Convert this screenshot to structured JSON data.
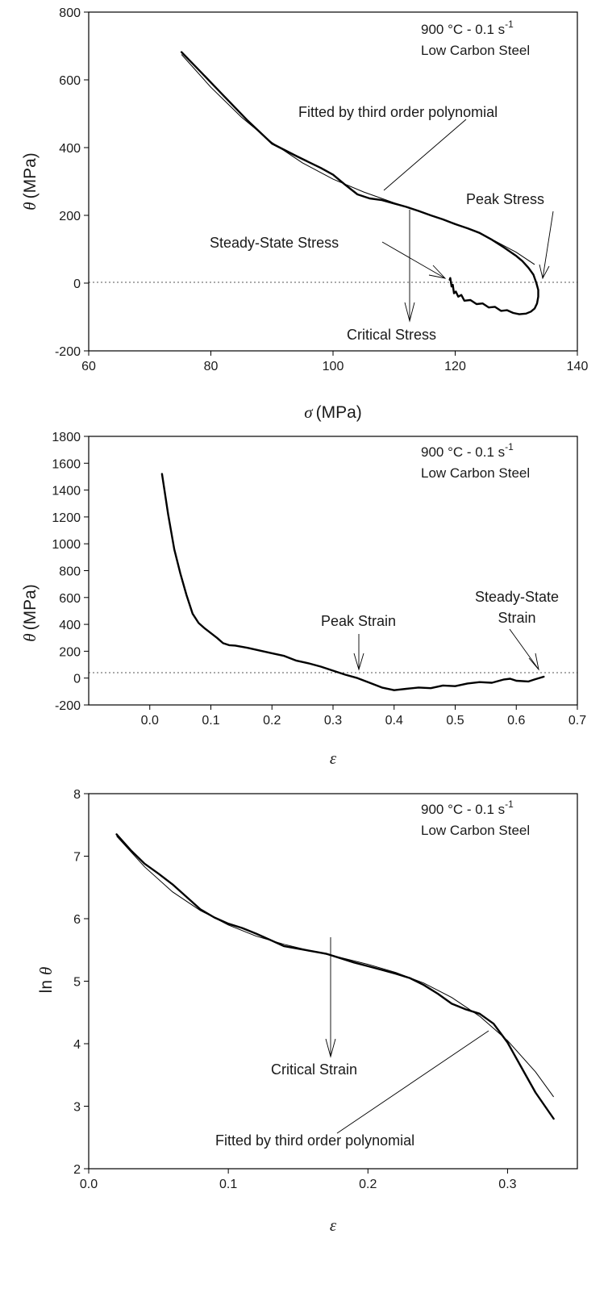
{
  "chart_data": [
    {
      "type": "line",
      "xlabel": "(MPa)",
      "xlabel_symbol": "σ",
      "ylabel": "(MPa)",
      "ylabel_symbol": "θ",
      "xlim": [
        60,
        140
      ],
      "ylim": [
        -200,
        800
      ],
      "xticks": [
        "60",
        "80",
        "100",
        "120",
        "140"
      ],
      "yticks": [
        "-200",
        "0",
        "200",
        "400",
        "600",
        "800"
      ],
      "note_line1": "900 °C - 0.1 s",
      "note_sup": "-1",
      "note_line2": "Low Carbon Steel",
      "zero_line": true,
      "series": [
        {
          "x": [
            75.2,
            78,
            82,
            86,
            90,
            94,
            98,
            100,
            102,
            104,
            106,
            108,
            110,
            112,
            114,
            116,
            118,
            120,
            122,
            124,
            126,
            128,
            130,
            131,
            132,
            132.8,
            133.3,
            133.6,
            133.6,
            133.4,
            133,
            132.4,
            131.6,
            130.5,
            129.5,
            128.5,
            127.5,
            126.5,
            125.5,
            124.5,
            123.5,
            122.5,
            121.5,
            121,
            120.5,
            120.1,
            119.8,
            119.6,
            119.4,
            119.2,
            119.1
          ],
          "y": [
            682,
            630,
            555,
            480,
            412,
            375,
            340,
            320,
            290,
            262,
            250,
            245,
            235,
            225,
            213,
            200,
            188,
            174,
            162,
            148,
            128,
            105,
            80,
            65,
            45,
            25,
            0,
            -20,
            -40,
            -60,
            -75,
            -84,
            -90,
            -92,
            -88,
            -80,
            -82,
            -70,
            -72,
            -60,
            -62,
            -50,
            -52,
            -35,
            -40,
            -25,
            -30,
            -5,
            -10,
            15,
            10
          ]
        }
      ],
      "fit": {
        "x": [
          75.2,
          80,
          85,
          90,
          95,
          100,
          105,
          110,
          115,
          120,
          125,
          130,
          133
        ],
        "y": [
          675,
          578,
          490,
          415,
          355,
          307,
          269,
          237,
          207,
          176,
          139,
          91,
          55
        ]
      },
      "annotations": {
        "fitted": "Fitted by third order polynomial",
        "peak": "Peak Stress",
        "steady": "Steady-State Stress",
        "critical": "Critical Stress"
      }
    },
    {
      "type": "line",
      "xlabel": "",
      "xlabel_symbol": "ε",
      "ylabel": "(MPa)",
      "ylabel_symbol": "θ",
      "xlim": [
        -0.1,
        0.7
      ],
      "ylim": [
        -200,
        1800
      ],
      "xticks": [
        "0.0",
        "0.1",
        "0.2",
        "0.3",
        "0.4",
        "0.5",
        "0.6",
        "0.7"
      ],
      "yticks": [
        "-200",
        "0",
        "200",
        "400",
        "600",
        "800",
        "1000",
        "1200",
        "1400",
        "1600",
        "1800"
      ],
      "note_line1": "900 °C - 0.1 s",
      "note_sup": "-1",
      "note_line2": "Low Carbon Steel",
      "zero_line": true,
      "series": [
        {
          "x": [
            0.02,
            0.03,
            0.04,
            0.05,
            0.06,
            0.07,
            0.08,
            0.09,
            0.1,
            0.11,
            0.12,
            0.13,
            0.14,
            0.16,
            0.18,
            0.2,
            0.22,
            0.24,
            0.26,
            0.28,
            0.3,
            0.32,
            0.34,
            0.36,
            0.38,
            0.4,
            0.42,
            0.44,
            0.46,
            0.48,
            0.5,
            0.52,
            0.54,
            0.56,
            0.58,
            0.59,
            0.6,
            0.62,
            0.63,
            0.645
          ],
          "y": [
            1520,
            1220,
            960,
            780,
            620,
            480,
            410,
            370,
            335,
            300,
            260,
            245,
            242,
            225,
            205,
            185,
            165,
            130,
            110,
            85,
            55,
            25,
            0,
            -35,
            -70,
            -90,
            -80,
            -70,
            -75,
            -55,
            -60,
            -40,
            -30,
            -35,
            -10,
            -5,
            -20,
            -25,
            -10,
            10
          ]
        }
      ],
      "annotations": {
        "peak": "Peak Strain",
        "steady_line1": "Steady-State",
        "steady_line2": "Strain"
      }
    },
    {
      "type": "line",
      "xlabel": "",
      "xlabel_symbol": "ε",
      "ylabel_prefix": "ln",
      "ylabel_symbol": "θ",
      "xlim": [
        0,
        0.35
      ],
      "ylim": [
        2,
        8
      ],
      "xticks": [
        "0.0",
        "0.1",
        "0.2",
        "0.3"
      ],
      "yticks": [
        "2",
        "3",
        "4",
        "5",
        "6",
        "7",
        "8"
      ],
      "note_line1": "900 °C - 0.1 s",
      "note_sup": "-1",
      "note_line2": "Low Carbon Steel",
      "zero_line": false,
      "series": [
        {
          "x": [
            0.02,
            0.03,
            0.04,
            0.05,
            0.06,
            0.07,
            0.08,
            0.09,
            0.1,
            0.11,
            0.12,
            0.13,
            0.14,
            0.15,
            0.16,
            0.17,
            0.18,
            0.19,
            0.2,
            0.21,
            0.22,
            0.23,
            0.24,
            0.25,
            0.26,
            0.27,
            0.28,
            0.29,
            0.3,
            0.31,
            0.32,
            0.333
          ],
          "y": [
            7.35,
            7.1,
            6.88,
            6.72,
            6.55,
            6.35,
            6.15,
            6.02,
            5.92,
            5.85,
            5.76,
            5.66,
            5.56,
            5.52,
            5.48,
            5.44,
            5.37,
            5.3,
            5.24,
            5.18,
            5.12,
            5.05,
            4.94,
            4.8,
            4.64,
            4.55,
            4.48,
            4.32,
            4.02,
            3.62,
            3.22,
            2.8
          ]
        }
      ],
      "fit": {
        "x": [
          0.02,
          0.04,
          0.06,
          0.08,
          0.1,
          0.12,
          0.14,
          0.16,
          0.18,
          0.2,
          0.22,
          0.24,
          0.26,
          0.28,
          0.3,
          0.32,
          0.333
        ],
        "y": [
          7.32,
          6.83,
          6.43,
          6.13,
          5.9,
          5.72,
          5.59,
          5.48,
          5.38,
          5.27,
          5.14,
          4.97,
          4.74,
          4.44,
          4.05,
          3.55,
          3.15
        ]
      },
      "annotations": {
        "critical": "Critical Strain",
        "fitted": "Fitted by third order polynomial"
      }
    }
  ]
}
